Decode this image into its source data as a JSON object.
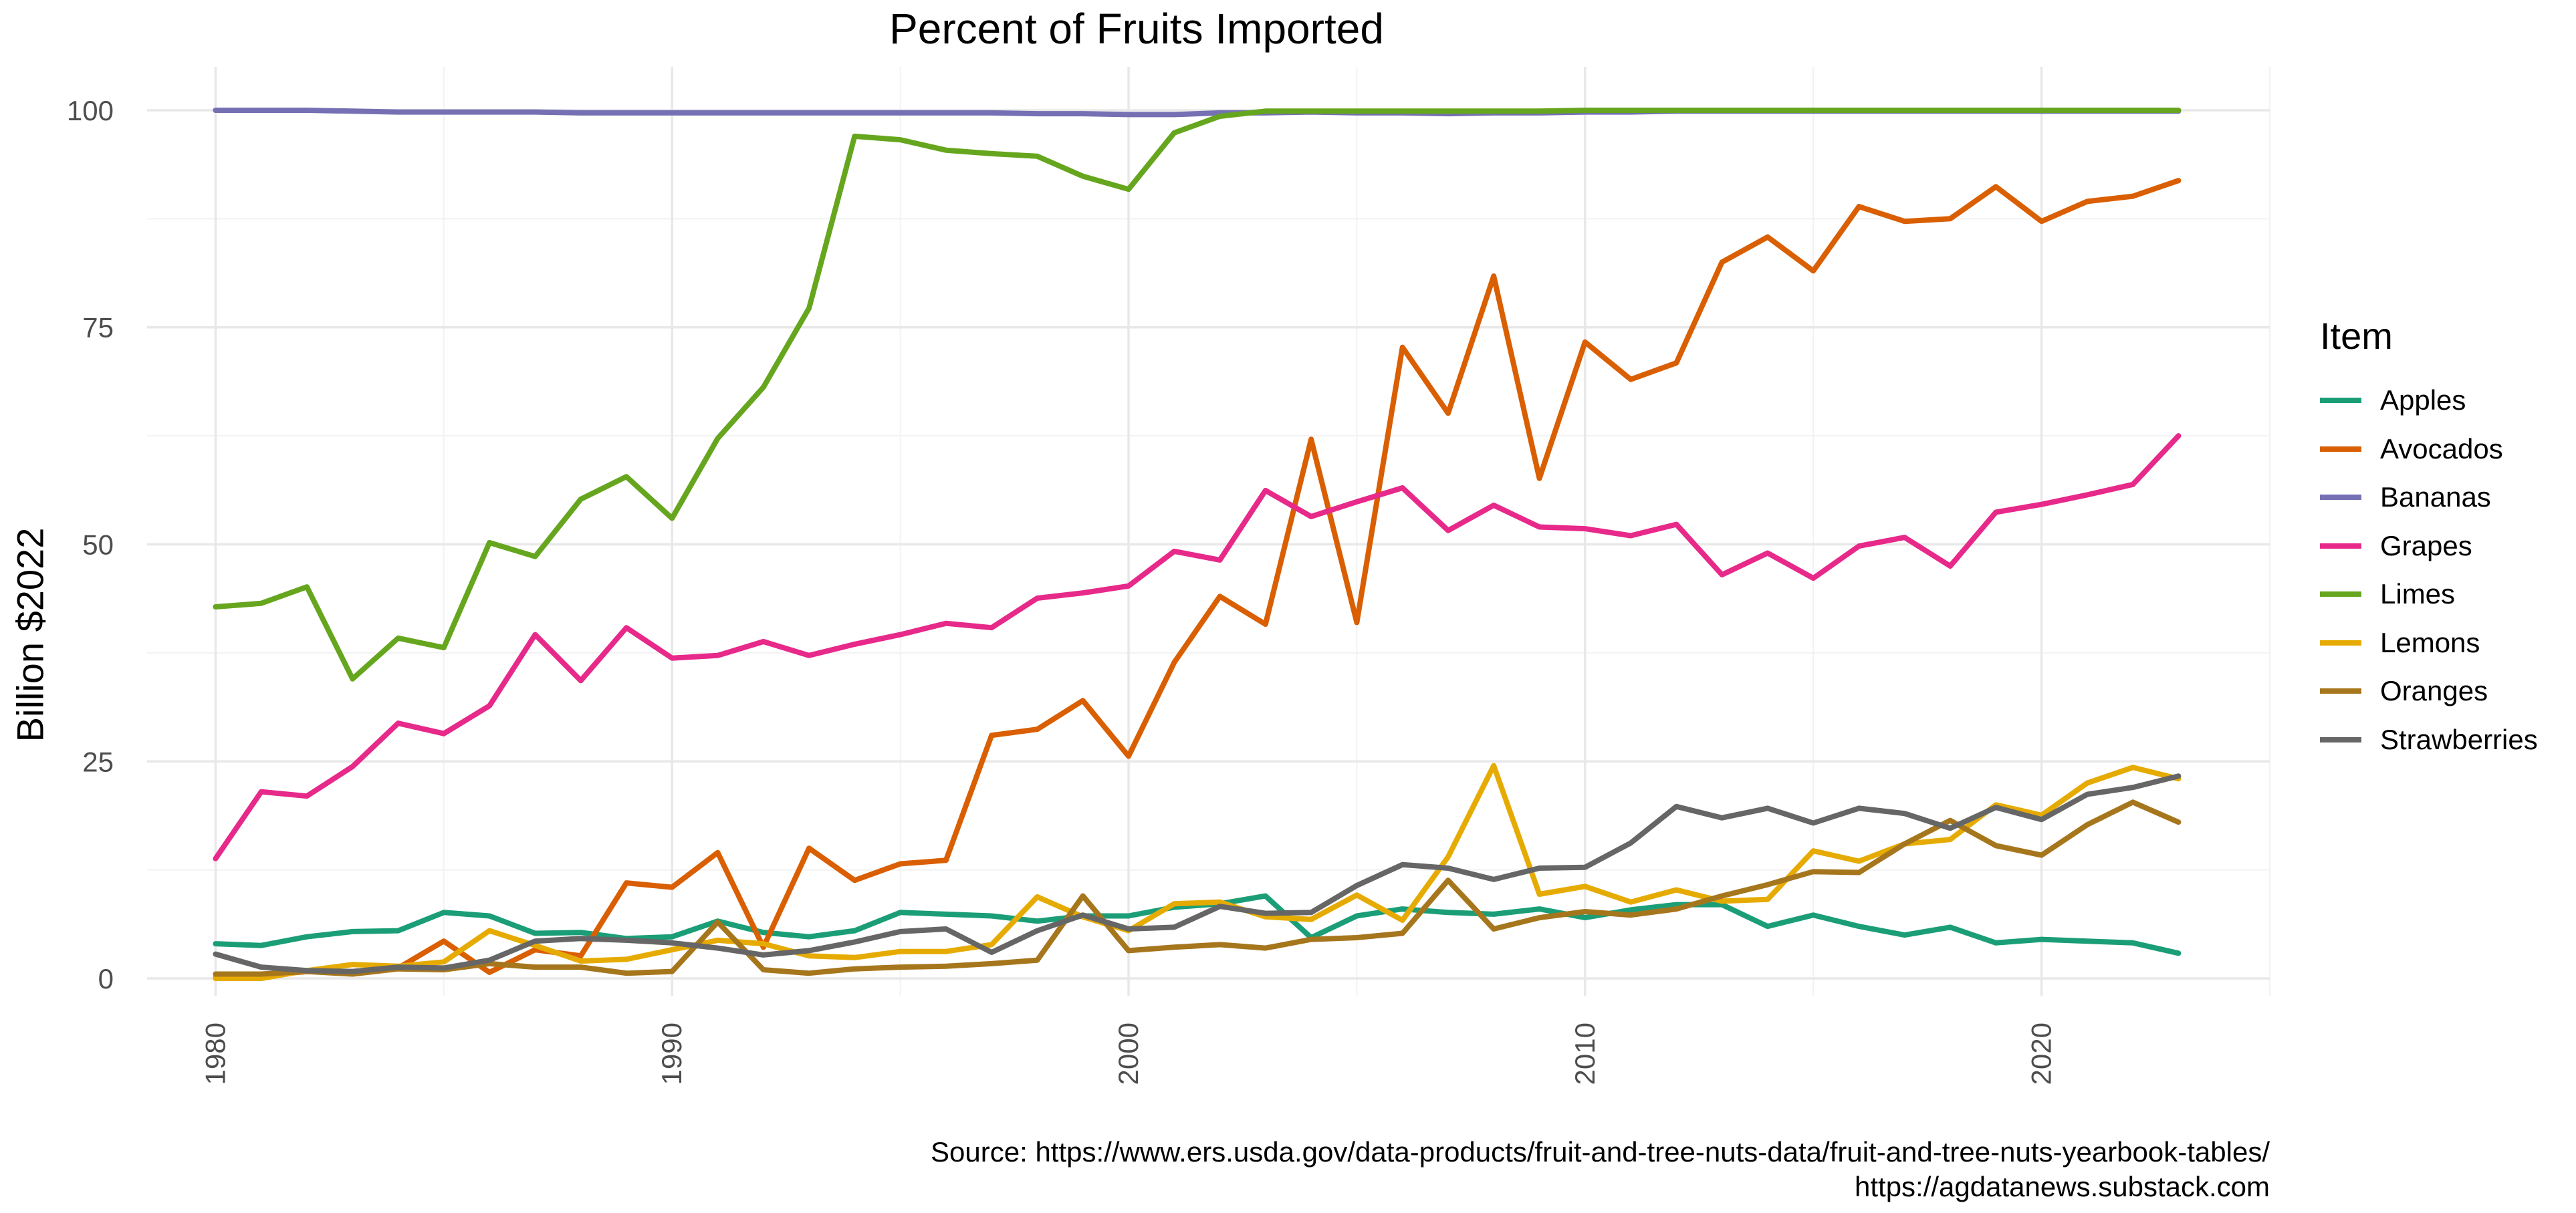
{
  "chart_data": {
    "type": "line",
    "title": "Percent of Fruits Imported",
    "xlabel": "",
    "ylabel": "Billion $2022",
    "xlim": [
      1978.5,
      2025
    ],
    "ylim": [
      -2,
      105
    ],
    "x_ticks": [
      1980,
      1990,
      2000,
      2010,
      2020
    ],
    "y_ticks": [
      0,
      25,
      50,
      75,
      100
    ],
    "grid": true,
    "legend": {
      "title": "Item",
      "position": "right"
    },
    "x": [
      1980,
      1981,
      1982,
      1983,
      1984,
      1985,
      1986,
      1987,
      1988,
      1989,
      1990,
      1991,
      1992,
      1993,
      1994,
      1995,
      1996,
      1997,
      1998,
      1999,
      2000,
      2001,
      2002,
      2003,
      2004,
      2005,
      2006,
      2007,
      2008,
      2009,
      2010,
      2011,
      2012,
      2013,
      2014,
      2015,
      2016,
      2017,
      2018,
      2019,
      2020,
      2021,
      2022,
      2023
    ],
    "series": [
      {
        "name": "Apples",
        "color": "#1B9E77",
        "values": [
          4.0,
          3.8,
          4.8,
          5.4,
          5.5,
          7.6,
          7.2,
          5.2,
          5.3,
          4.6,
          4.8,
          6.6,
          5.3,
          4.8,
          5.5,
          7.6,
          7.4,
          7.2,
          6.6,
          7.2,
          7.2,
          8.2,
          8.6,
          9.5,
          4.7,
          7.2,
          8.0,
          7.6,
          7.4,
          8.0,
          7.0,
          7.9,
          8.5,
          8.5,
          6.0,
          7.3,
          6.0,
          5.0,
          5.9,
          4.1,
          4.5,
          4.3,
          4.1,
          2.9
        ]
      },
      {
        "name": "Avocados",
        "color": "#D95F02",
        "values": [
          0.1,
          0.3,
          0.8,
          0.6,
          1.2,
          4.3,
          0.7,
          3.3,
          2.6,
          11.0,
          10.5,
          14.5,
          3.6,
          15.0,
          11.3,
          13.2,
          13.6,
          28.0,
          28.7,
          32.0,
          25.6,
          36.4,
          44.0,
          40.8,
          62.1,
          41.0,
          72.7,
          65.1,
          80.9,
          57.6,
          73.3,
          69.0,
          70.9,
          82.5,
          85.4,
          81.5,
          88.9,
          87.2,
          87.5,
          91.2,
          87.2,
          89.5,
          90.1,
          91.9
        ]
      },
      {
        "name": "Bananas",
        "color": "#7570B3",
        "values": [
          100,
          100,
          100,
          99.9,
          99.8,
          99.8,
          99.8,
          99.8,
          99.7,
          99.7,
          99.7,
          99.7,
          99.7,
          99.7,
          99.7,
          99.7,
          99.7,
          99.7,
          99.6,
          99.6,
          99.5,
          99.5,
          99.7,
          99.7,
          99.8,
          99.7,
          99.7,
          99.6,
          99.7,
          99.7,
          99.8,
          99.8,
          99.9,
          99.9,
          99.9,
          99.9,
          99.9,
          99.9,
          99.9,
          99.9,
          99.9,
          99.9,
          99.9,
          99.9
        ]
      },
      {
        "name": "Grapes",
        "color": "#E7298A",
        "values": [
          13.8,
          21.5,
          21.0,
          24.4,
          29.4,
          28.2,
          31.4,
          39.6,
          34.3,
          40.4,
          36.9,
          37.2,
          38.8,
          37.2,
          38.5,
          39.6,
          40.9,
          40.4,
          43.8,
          44.4,
          45.2,
          49.2,
          48.2,
          56.2,
          53.2,
          54.9,
          56.5,
          51.6,
          54.5,
          52.0,
          51.8,
          51.0,
          52.3,
          46.5,
          49.0,
          46.1,
          49.8,
          50.8,
          47.5,
          53.7,
          54.6,
          55.7,
          56.9,
          62.5
        ]
      },
      {
        "name": "Limes",
        "color": "#66A61E",
        "values": [
          42.8,
          43.2,
          45.1,
          34.5,
          39.2,
          38.1,
          50.2,
          48.6,
          55.2,
          57.8,
          53.0,
          62.2,
          68.1,
          77.2,
          97.0,
          96.6,
          95.4,
          95.0,
          94.7,
          92.4,
          90.9,
          97.4,
          99.3,
          99.9,
          99.9,
          99.9,
          99.9,
          99.9,
          99.9,
          99.9,
          100,
          100,
          100,
          100,
          100,
          100,
          100,
          100,
          100,
          100,
          100,
          100,
          100,
          100
        ]
      },
      {
        "name": "Lemons",
        "color": "#E6AB02",
        "values": [
          0.0,
          0.0,
          0.9,
          1.6,
          1.4,
          1.9,
          5.5,
          3.8,
          2.0,
          2.2,
          3.3,
          4.4,
          4.0,
          2.6,
          2.4,
          3.1,
          3.1,
          3.9,
          9.4,
          7.1,
          5.5,
          8.6,
          8.8,
          7.1,
          6.8,
          9.6,
          6.7,
          14.0,
          24.5,
          9.7,
          10.6,
          8.8,
          10.2,
          8.9,
          9.1,
          14.7,
          13.5,
          15.5,
          16.0,
          20.0,
          18.8,
          22.5,
          24.3,
          23.0
        ]
      },
      {
        "name": "Oranges",
        "color": "#A6761D",
        "values": [
          0.5,
          0.5,
          0.8,
          0.5,
          1.1,
          1.0,
          1.7,
          1.3,
          1.3,
          0.6,
          0.8,
          6.5,
          1.0,
          0.6,
          1.1,
          1.3,
          1.4,
          1.7,
          2.1,
          9.5,
          3.2,
          3.6,
          3.9,
          3.5,
          4.5,
          4.7,
          5.2,
          11.3,
          5.7,
          7.0,
          7.7,
          7.3,
          8.0,
          9.5,
          10.8,
          12.3,
          12.2,
          15.5,
          18.2,
          15.3,
          14.2,
          17.7,
          20.3,
          18.0
        ]
      },
      {
        "name": "Strawberries",
        "color": "#666666",
        "values": [
          2.8,
          1.3,
          0.9,
          0.8,
          1.3,
          1.2,
          2.1,
          4.3,
          4.6,
          4.4,
          4.1,
          3.5,
          2.7,
          3.2,
          4.2,
          5.4,
          5.7,
          3.0,
          5.5,
          7.3,
          5.7,
          5.9,
          8.3,
          7.5,
          7.6,
          10.7,
          13.1,
          12.7,
          11.4,
          12.7,
          12.8,
          15.6,
          19.8,
          18.5,
          19.6,
          17.9,
          19.6,
          19.0,
          17.3,
          19.7,
          18.3,
          21.2,
          22.0,
          23.3
        ]
      }
    ],
    "source_lines": [
      "Source: https://www.ers.usda.gov/data-products/fruit-and-tree-nuts-data/fruit-and-tree-nuts-yearbook-tables/",
      "https://agdatanews.substack.com"
    ]
  }
}
